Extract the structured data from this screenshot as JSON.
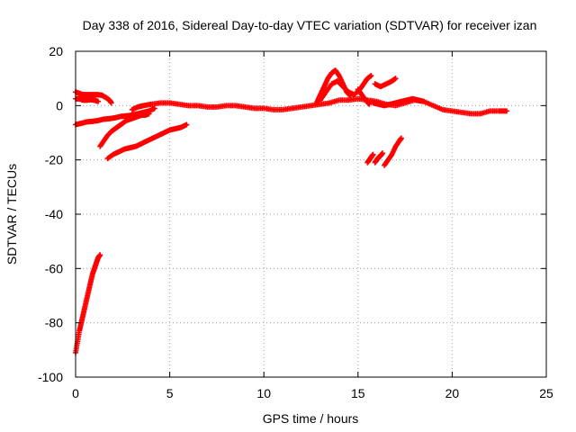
{
  "chart_data": {
    "type": "scatter",
    "title": "Day 338 of 2016, Sidereal Day-to-day VTEC variation (SDTVAR) for receiver izan",
    "xlabel": "GPS time / hours",
    "ylabel": "SDTVAR / TECUs",
    "xlim": [
      0,
      25
    ],
    "ylim": [
      -100,
      20
    ],
    "xticks": [
      0,
      5,
      10,
      15,
      20,
      25
    ],
    "yticks": [
      -100,
      -80,
      -60,
      -40,
      -20,
      0,
      20
    ],
    "grid": true,
    "marker": "+",
    "color": "#ff0000",
    "series": [
      {
        "name": "steep-descending-track",
        "points": [
          [
            0.0,
            -91
          ],
          [
            0.1,
            -87
          ],
          [
            0.2,
            -83
          ],
          [
            0.3,
            -80
          ],
          [
            0.4,
            -77
          ],
          [
            0.5,
            -74
          ],
          [
            0.6,
            -71
          ],
          [
            0.7,
            -68
          ],
          [
            0.8,
            -65
          ],
          [
            0.9,
            -62
          ],
          [
            1.0,
            -60
          ],
          [
            1.1,
            -58
          ],
          [
            1.2,
            -56
          ],
          [
            1.3,
            -55
          ]
        ]
      },
      {
        "name": "early-positive-track",
        "points": [
          [
            0.0,
            5
          ],
          [
            0.2,
            4.5
          ],
          [
            0.4,
            4
          ],
          [
            0.6,
            4
          ],
          [
            0.8,
            4
          ],
          [
            1.0,
            4
          ],
          [
            1.2,
            4
          ],
          [
            1.4,
            3.8
          ],
          [
            1.6,
            3
          ],
          [
            1.8,
            2
          ],
          [
            1.9,
            1
          ]
        ]
      },
      {
        "name": "early-near-zero-track",
        "points": [
          [
            0.0,
            2.5
          ],
          [
            0.2,
            2.5
          ],
          [
            0.4,
            2
          ],
          [
            0.6,
            2
          ],
          [
            0.8,
            2.2
          ],
          [
            1.0,
            2
          ],
          [
            1.2,
            1.5
          ]
        ]
      },
      {
        "name": "rising-minus-seven-track",
        "points": [
          [
            0.0,
            -7
          ],
          [
            0.3,
            -6.5
          ],
          [
            0.6,
            -6
          ],
          [
            0.9,
            -5.8
          ],
          [
            1.2,
            -5.5
          ],
          [
            1.5,
            -5
          ],
          [
            1.8,
            -4.8
          ],
          [
            2.1,
            -4.5
          ],
          [
            2.4,
            -4
          ],
          [
            2.7,
            -3.8
          ],
          [
            3.0,
            -3.5
          ],
          [
            3.3,
            -3
          ],
          [
            3.6,
            -2.5
          ],
          [
            3.9,
            -2
          ],
          [
            4.2,
            -1
          ]
        ]
      },
      {
        "name": "rising-minus-fifteen-track",
        "points": [
          [
            1.3,
            -15
          ],
          [
            1.5,
            -13
          ],
          [
            1.7,
            -11
          ],
          [
            1.9,
            -9.5
          ],
          [
            2.1,
            -8.5
          ],
          [
            2.3,
            -7.5
          ],
          [
            2.5,
            -6.5
          ],
          [
            2.7,
            -5.5
          ],
          [
            2.9,
            -5
          ],
          [
            3.1,
            -4.5
          ],
          [
            3.3,
            -4
          ],
          [
            3.5,
            -3.5
          ],
          [
            3.7,
            -3.5
          ],
          [
            3.9,
            -3
          ]
        ]
      },
      {
        "name": "rising-minus-twenty-track",
        "points": [
          [
            1.7,
            -19.5
          ],
          [
            2.0,
            -18
          ],
          [
            2.3,
            -17
          ],
          [
            2.6,
            -16
          ],
          [
            2.9,
            -15.5
          ],
          [
            3.2,
            -15
          ],
          [
            3.5,
            -14
          ],
          [
            3.8,
            -13
          ],
          [
            4.1,
            -12
          ],
          [
            4.4,
            -11
          ],
          [
            4.7,
            -10
          ],
          [
            5.0,
            -9
          ],
          [
            5.3,
            -8.5
          ],
          [
            5.6,
            -8
          ],
          [
            5.9,
            -7
          ]
        ]
      },
      {
        "name": "main-near-zero-track",
        "points": [
          [
            3.0,
            -1.5
          ],
          [
            3.3,
            -0.5
          ],
          [
            3.6,
            0
          ],
          [
            4.0,
            0.5
          ],
          [
            4.5,
            1
          ],
          [
            5.0,
            1
          ],
          [
            5.5,
            0.5
          ],
          [
            6.0,
            0
          ],
          [
            6.5,
            0
          ],
          [
            7.0,
            -0.5
          ],
          [
            7.5,
            -0.5
          ],
          [
            8.0,
            0
          ],
          [
            8.5,
            0
          ],
          [
            9.0,
            -0.5
          ],
          [
            9.5,
            -1
          ],
          [
            10.0,
            -1
          ],
          [
            10.5,
            -1.5
          ],
          [
            11.0,
            -1.5
          ],
          [
            11.5,
            -1
          ],
          [
            12.0,
            -0.5
          ],
          [
            12.5,
            0
          ],
          [
            13.0,
            0.5
          ],
          [
            13.5,
            1
          ],
          [
            14.0,
            2
          ],
          [
            14.5,
            2
          ],
          [
            15.0,
            2.5
          ],
          [
            15.5,
            2
          ],
          [
            16.0,
            1.5
          ],
          [
            16.5,
            0.5
          ],
          [
            17.0,
            0
          ],
          [
            17.5,
            1
          ],
          [
            18.0,
            2
          ],
          [
            18.5,
            1.5
          ],
          [
            19.0,
            0
          ],
          [
            19.5,
            -1.5
          ],
          [
            20.0,
            -2
          ],
          [
            20.5,
            -2.5
          ],
          [
            21.0,
            -3
          ],
          [
            21.5,
            -3
          ],
          [
            22.0,
            -2
          ],
          [
            22.5,
            -2
          ],
          [
            22.9,
            -2
          ]
        ]
      },
      {
        "name": "upper-bump-track",
        "points": [
          [
            12.8,
            1
          ],
          [
            13.0,
            4
          ],
          [
            13.2,
            7
          ],
          [
            13.4,
            10
          ],
          [
            13.6,
            12
          ],
          [
            13.8,
            13
          ],
          [
            14.0,
            11
          ],
          [
            14.2,
            8
          ],
          [
            14.4,
            5
          ],
          [
            14.6,
            3.5
          ]
        ]
      },
      {
        "name": "secondary-bump-track",
        "points": [
          [
            13.0,
            2
          ],
          [
            13.3,
            5
          ],
          [
            13.6,
            8
          ],
          [
            13.9,
            9
          ],
          [
            14.2,
            7
          ],
          [
            14.5,
            5
          ],
          [
            14.8,
            4
          ],
          [
            15.1,
            6
          ],
          [
            15.3,
            8
          ],
          [
            15.5,
            10
          ],
          [
            15.7,
            11
          ]
        ]
      },
      {
        "name": "short-descending-track",
        "points": [
          [
            15.0,
            6
          ],
          [
            15.2,
            4
          ],
          [
            15.4,
            2
          ],
          [
            15.6,
            0.5
          ]
        ]
      },
      {
        "name": "sparse-points",
        "points": [
          [
            15.9,
            8
          ],
          [
            16.2,
            7
          ],
          [
            16.5,
            8
          ],
          [
            16.8,
            9
          ],
          [
            17.0,
            10
          ]
        ]
      },
      {
        "name": "late-near-zero-track",
        "points": [
          [
            15.8,
            1
          ],
          [
            16.1,
            0.5
          ],
          [
            16.4,
            0
          ],
          [
            16.7,
            0.5
          ],
          [
            17.0,
            1
          ],
          [
            17.3,
            1.5
          ],
          [
            17.6,
            2
          ],
          [
            17.9,
            2.5
          ],
          [
            18.2,
            2
          ],
          [
            18.5,
            1.5
          ]
        ]
      },
      {
        "name": "late-negative-track-1",
        "points": [
          [
            15.5,
            -21
          ],
          [
            15.6,
            -20
          ],
          [
            15.7,
            -19
          ],
          [
            15.8,
            -18
          ]
        ]
      },
      {
        "name": "late-negative-track-2",
        "points": [
          [
            15.9,
            -21
          ],
          [
            16.0,
            -20
          ],
          [
            16.1,
            -19
          ],
          [
            16.2,
            -18.5
          ],
          [
            16.3,
            -17.5
          ]
        ]
      },
      {
        "name": "late-negative-track-3",
        "points": [
          [
            16.4,
            -22
          ],
          [
            16.6,
            -20
          ],
          [
            16.8,
            -18
          ],
          [
            17.0,
            -15
          ],
          [
            17.2,
            -13
          ],
          [
            17.3,
            -12
          ]
        ]
      }
    ]
  }
}
